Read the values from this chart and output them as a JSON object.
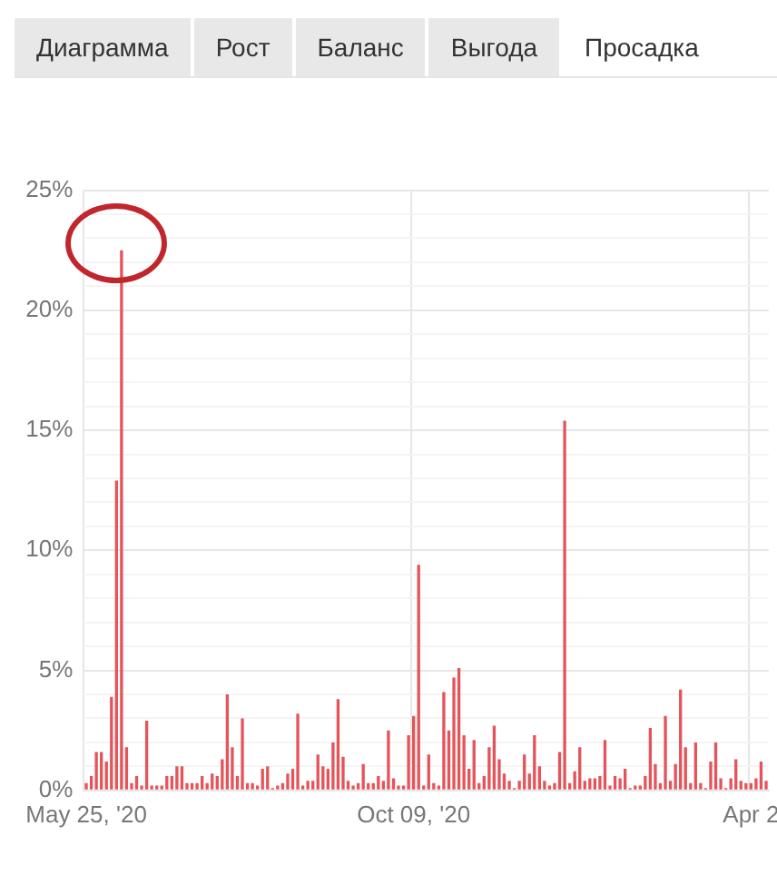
{
  "chart_data": {
    "type": "bar",
    "title": "Просадка",
    "annotations": [
      "Диаграмма",
      "Рост",
      "Баланс",
      "Выгода"
    ],
    "categories": [
      "May 25, '20",
      null,
      null,
      null,
      null,
      null,
      null,
      null,
      null,
      null,
      null,
      null,
      null,
      null,
      null,
      null,
      null,
      null,
      null,
      null,
      null,
      null,
      null,
      null,
      null,
      null,
      null,
      null,
      null,
      null,
      null,
      null,
      null,
      null,
      null,
      null,
      null,
      null,
      null,
      null,
      null,
      null,
      null,
      null,
      null,
      null,
      null,
      null,
      null,
      null,
      null,
      null,
      null,
      null,
      null,
      null,
      null,
      null,
      null,
      null,
      null,
      null,
      null,
      null,
      null,
      "Oct 09, '20",
      null,
      null,
      null,
      null,
      null,
      null,
      null,
      null,
      null,
      null,
      null,
      null,
      null,
      null,
      null,
      null,
      null,
      null,
      null,
      null,
      null,
      null,
      null,
      null,
      null,
      null,
      null,
      null,
      null,
      null,
      null,
      null,
      null,
      null,
      null,
      null,
      null,
      null,
      null,
      null,
      null,
      null,
      null,
      null,
      null,
      null,
      null,
      null,
      null,
      null,
      null,
      null,
      null,
      null,
      null,
      null,
      null,
      null,
      null,
      null,
      null,
      null,
      null,
      null,
      null,
      null,
      "Apr 2",
      null,
      null,
      null
    ],
    "values": [
      0.3,
      0.6,
      1.6,
      1.6,
      1.2,
      3.9,
      12.9,
      22.5,
      1.8,
      0.3,
      0.6,
      0.2,
      2.9,
      0.2,
      0.2,
      0.2,
      0.6,
      0.6,
      1.0,
      1.0,
      0.3,
      0.3,
      0.3,
      0.6,
      0.3,
      0.7,
      0.6,
      1.3,
      4.0,
      1.8,
      0.6,
      3.0,
      0.3,
      0.3,
      0.2,
      0.9,
      1.0,
      0.1,
      0.2,
      0.3,
      0.7,
      0.9,
      3.2,
      0.2,
      0.4,
      0.4,
      1.5,
      1.0,
      0.9,
      2.0,
      3.8,
      1.4,
      0.4,
      0.2,
      0.3,
      1.1,
      0.3,
      0.3,
      0.6,
      0.4,
      2.5,
      0.5,
      0.2,
      0.2,
      2.3,
      3.1,
      9.4,
      0.2,
      1.5,
      0.3,
      0.2,
      4.1,
      2.5,
      4.7,
      5.1,
      2.3,
      0.9,
      2.1,
      0.3,
      0.6,
      1.8,
      2.7,
      1.3,
      0.7,
      0.4,
      0.1,
      0.4,
      1.5,
      0.7,
      2.3,
      1.0,
      0.4,
      0.2,
      0.3,
      1.6,
      15.4,
      0.3,
      0.8,
      1.8,
      0.4,
      0.5,
      0.5,
      0.6,
      2.1,
      0.2,
      0.6,
      0.5,
      0.9,
      0.1,
      0.2,
      0.2,
      0.6,
      2.6,
      1.1,
      0.3,
      3.1,
      0.4,
      1.1,
      4.2,
      1.8,
      0.3,
      2.0,
      0.3,
      0.1,
      1.2,
      2.0,
      0.5,
      0.1,
      0.5,
      1.3,
      0.4,
      0.3,
      0.3,
      0.5,
      1.2,
      0.4
    ],
    "color": "#e4555b",
    "ylim": [
      0,
      25
    ],
    "yticks": [
      {
        "value": 0,
        "label": "0%"
      },
      {
        "value": 1,
        "label": null
      },
      {
        "value": 2,
        "label": null
      },
      {
        "value": 3,
        "label": null
      },
      {
        "value": 4,
        "label": null
      },
      {
        "value": 5,
        "label": "5%"
      },
      {
        "value": 6,
        "label": null
      },
      {
        "value": 7,
        "label": null
      },
      {
        "value": 8,
        "label": null
      },
      {
        "value": 9,
        "label": null
      },
      {
        "value": 10,
        "label": "10%"
      },
      {
        "value": 11,
        "label": null
      },
      {
        "value": 12,
        "label": null
      },
      {
        "value": 13,
        "label": null
      },
      {
        "value": 14,
        "label": null
      },
      {
        "value": 15,
        "label": "15%"
      },
      {
        "value": 16,
        "label": null
      },
      {
        "value": 17,
        "label": null
      },
      {
        "value": 18,
        "label": null
      },
      {
        "value": 19,
        "label": null
      },
      {
        "value": 20,
        "label": "20%"
      },
      {
        "value": 21,
        "label": null
      },
      {
        "value": 22,
        "label": null
      },
      {
        "value": 23,
        "label": null
      },
      {
        "value": 24,
        "label": null
      },
      {
        "value": 25,
        "label": "25%"
      }
    ],
    "grid": true,
    "legend": false
  }
}
